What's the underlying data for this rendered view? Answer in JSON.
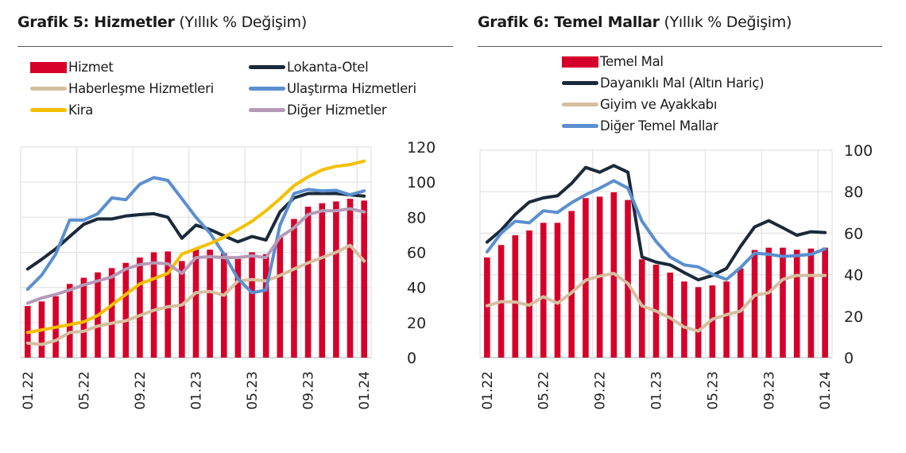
{
  "chart_data": [
    {
      "type": "bar+line",
      "title": "Grafik 5: Hizmetler",
      "subtitle": "(Yıllık % Değişim)",
      "categories": [
        "01.22",
        "02.22",
        "03.22",
        "04.22",
        "05.22",
        "06.22",
        "07.22",
        "08.22",
        "09.22",
        "10.22",
        "11.22",
        "12.22",
        "01.23",
        "02.23",
        "03.23",
        "04.23",
        "05.23",
        "06.23",
        "07.23",
        "08.23",
        "09.23",
        "10.23",
        "11.23",
        "12.23",
        "01.24"
      ],
      "tick_labels": [
        "01.22",
        "05.22",
        "09.22",
        "01.23",
        "05.23",
        "09.23",
        "01.24"
      ],
      "ylim": [
        0,
        120
      ],
      "yticks": [
        "0",
        "20",
        "40",
        "60",
        "80",
        "100",
        "120"
      ],
      "y_axis_side": "right",
      "grid": true,
      "legend_placement": "top",
      "series": [
        {
          "name": "Hizmet",
          "kind": "bar",
          "color": "#d6002a",
          "values": [
            29.4,
            32,
            35,
            42,
            45.5,
            48.6,
            51,
            54,
            57,
            60,
            60.5,
            55,
            62,
            61.5,
            59.5,
            56.5,
            60,
            59,
            69.4,
            79,
            86,
            88,
            89,
            90.5,
            89.5
          ]
        },
        {
          "name": "Lokanta-Otel",
          "kind": "line",
          "color": "#1b2a3a",
          "values": [
            50.5,
            56,
            62,
            69,
            76,
            79,
            79,
            80.7,
            81.5,
            82,
            80,
            68,
            75.5,
            73,
            69.4,
            66,
            69,
            67,
            83,
            91,
            93.5,
            93.5,
            93.5,
            92.8,
            92
          ]
        },
        {
          "name": "Haberleşme Hizmetleri",
          "kind": "line",
          "color": "#d5bfa0",
          "values": [
            8.3,
            7.5,
            9.8,
            14.3,
            15,
            18,
            19.6,
            21,
            24,
            27,
            29,
            30,
            37,
            37.7,
            35.5,
            43.7,
            44.5,
            43.7,
            46.8,
            50.5,
            54,
            57,
            60,
            64,
            55
          ]
        },
        {
          "name": "Ulaştırma Hizmetleri",
          "kind": "line",
          "color": "#5b8fcf",
          "values": [
            39,
            47,
            59,
            78.4,
            78.4,
            82,
            91,
            90,
            98.8,
            102.6,
            101,
            90.5,
            80,
            71,
            59,
            45,
            37,
            38.5,
            75.5,
            93.5,
            95.8,
            95,
            95.3,
            92.8,
            95
          ]
        },
        {
          "name": "Kira",
          "kind": "line",
          "color": "#f5c000",
          "values": [
            14.3,
            15.8,
            17.3,
            18.8,
            20.4,
            24,
            30,
            36,
            42,
            45,
            48,
            59,
            62,
            65,
            68.6,
            73,
            77.7,
            83.7,
            90.5,
            98,
            103,
            107,
            109,
            110,
            112
          ]
        },
        {
          "name": "Diğer Hizmetler",
          "kind": "line",
          "color": "#b59ab8",
          "values": [
            31,
            34,
            36,
            38.5,
            41.5,
            43.7,
            46,
            50.5,
            53,
            54,
            53.5,
            48,
            57,
            57.5,
            57,
            57,
            58,
            57,
            68.6,
            74,
            81.5,
            83.7,
            83.7,
            84.8,
            83
          ]
        }
      ]
    },
    {
      "type": "bar+line",
      "title": "Grafik 6: Temel Mallar",
      "subtitle": "(Yıllık % Değişim)",
      "categories": [
        "01.22",
        "02.22",
        "03.22",
        "04.22",
        "05.22",
        "06.22",
        "07.22",
        "08.22",
        "09.22",
        "10.22",
        "11.22",
        "12.22",
        "01.23",
        "02.23",
        "03.23",
        "04.23",
        "05.23",
        "06.23",
        "07.23",
        "08.23",
        "09.23",
        "10.23",
        "11.23",
        "12.23",
        "01.24"
      ],
      "tick_labels": [
        "01.22",
        "05.22",
        "09.22",
        "01.23",
        "05.23",
        "09.23",
        "01.24"
      ],
      "ylim": [
        0,
        100
      ],
      "yticks": [
        "0",
        "20",
        "40",
        "60",
        "80",
        "100"
      ],
      "y_axis_side": "right",
      "grid": true,
      "legend_placement": "top",
      "series": [
        {
          "name": "Temel Mal",
          "kind": "bar",
          "color": "#d6002a",
          "values": [
            48.3,
            54.3,
            59,
            61.3,
            65,
            65,
            70.7,
            76.9,
            77.6,
            79.7,
            76,
            47.4,
            44.8,
            41,
            36.7,
            34,
            34.8,
            36.7,
            43,
            51.9,
            53,
            53,
            52,
            52.6,
            53
          ]
        },
        {
          "name": "Dayanıklı Mal (Altın Hariç)",
          "kind": "line",
          "color": "#1b2a3a",
          "values": [
            55.7,
            61.5,
            69,
            75,
            77,
            78,
            84,
            91.7,
            89.4,
            92.6,
            89.4,
            48.5,
            46,
            44.7,
            41,
            37.5,
            39.6,
            43,
            53.6,
            63,
            66,
            62.6,
            59,
            60.7,
            60.3
          ]
        },
        {
          "name": "Giyim ve Ayakkabı",
          "kind": "line",
          "color": "#d5bfa0",
          "values": [
            25,
            27,
            26.8,
            25.3,
            29.4,
            26.2,
            31.3,
            37.3,
            39.3,
            40.6,
            35.8,
            25,
            22.4,
            19.2,
            14.7,
            12.8,
            18.5,
            20.7,
            22.4,
            30,
            31.3,
            37.7,
            39.6,
            39.6,
            39.6
          ]
        },
        {
          "name": "Diğer Temel Mallar",
          "kind": "line",
          "color": "#5b8fcf",
          "values": [
            51,
            60,
            65.8,
            65,
            70.8,
            70,
            74.7,
            78.5,
            81.7,
            85.3,
            81.7,
            65.8,
            56,
            48.5,
            44.7,
            43.7,
            40.2,
            37.7,
            43.4,
            50.4,
            49.8,
            48.8,
            49.2,
            49.8,
            52.4
          ]
        }
      ]
    }
  ]
}
